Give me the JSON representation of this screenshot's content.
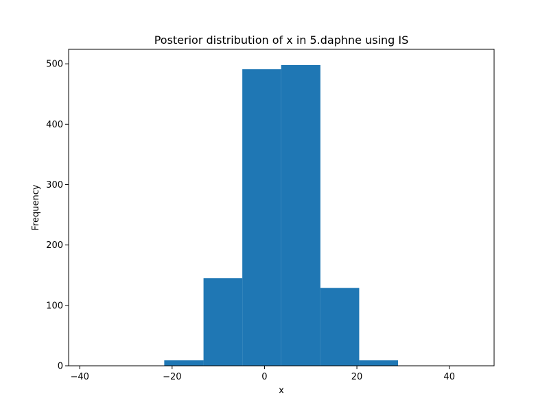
{
  "chart_data": {
    "type": "bar",
    "title": "Posterior distribution of x in 5.daphne using IS",
    "xlabel": "x",
    "ylabel": "Frequency",
    "bar_color": "#1f77b4",
    "xlim": [
      -42.4,
      49.7
    ],
    "ylim": [
      0,
      524
    ],
    "x_ticks": [
      -40,
      -20,
      0,
      20,
      40
    ],
    "y_ticks": [
      0,
      100,
      200,
      300,
      400,
      500
    ],
    "bins": [
      {
        "x0": -38.5,
        "x1": -30.1,
        "value": 0
      },
      {
        "x0": -30.1,
        "x1": -21.7,
        "value": 0
      },
      {
        "x0": -21.7,
        "x1": -13.2,
        "value": 9
      },
      {
        "x0": -13.2,
        "x1": -4.8,
        "value": 145
      },
      {
        "x0": -4.8,
        "x1": 3.6,
        "value": 491
      },
      {
        "x0": 3.6,
        "x1": 12.1,
        "value": 498
      },
      {
        "x0": 12.1,
        "x1": 20.5,
        "value": 129
      },
      {
        "x0": 20.5,
        "x1": 28.9,
        "value": 9
      },
      {
        "x0": 28.9,
        "x1": 37.3,
        "value": 0
      },
      {
        "x0": 37.3,
        "x1": 45.7,
        "value": 0
      }
    ]
  }
}
